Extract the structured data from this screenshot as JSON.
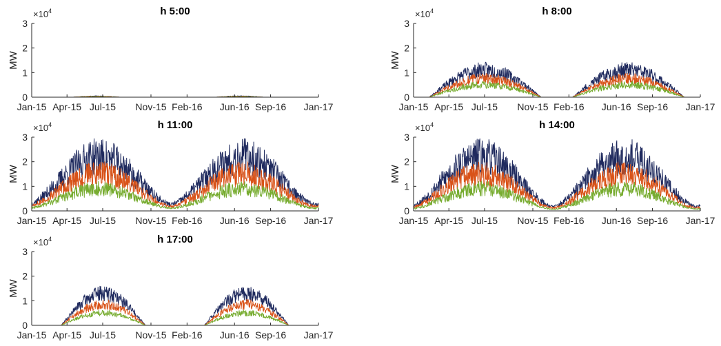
{
  "chart_data": [
    {
      "type": "line",
      "title": "h 5:00",
      "ylabel": "MW",
      "exponent_label": "×10",
      "exponent_power": "4",
      "ylim": [
        0,
        30000
      ],
      "yticks": [
        0,
        10000,
        20000,
        30000
      ],
      "ytick_labels": [
        "0",
        "1",
        "2",
        "3"
      ],
      "xlim": [
        "2015-01-01",
        "2017-01-01"
      ],
      "xticks": [
        "2015-01-01",
        "2015-04-01",
        "2015-07-01",
        "2015-11-01",
        "2016-02-01",
        "2016-06-01",
        "2016-09-01",
        "2017-01-01"
      ],
      "xtick_labels": [
        "Jan-15",
        "Apr-15",
        "Jul-15",
        "Nov-15",
        "Feb-16",
        "Jun-16",
        "Sep-16",
        "Jan-17"
      ],
      "series": [
        {
          "color": "#1f2a5e",
          "peak": 400,
          "noise": 0.45
        },
        {
          "color": "#d95319",
          "peak": 280,
          "noise": 0.45
        },
        {
          "color": "#77ac30",
          "peak": 180,
          "noise": 0.45
        }
      ],
      "profile": {
        "start_doy": 105,
        "end_doy": 225,
        "base": 0,
        "seed": 11
      }
    },
    {
      "type": "line",
      "title": "h 8:00",
      "ylabel": "MW",
      "exponent_label": "×10",
      "exponent_power": "4",
      "ylim": [
        0,
        30000
      ],
      "yticks": [
        0,
        10000,
        20000,
        30000
      ],
      "ytick_labels": [
        "0",
        "1",
        "2",
        "3"
      ],
      "xlim": [
        "2015-01-01",
        "2017-01-01"
      ],
      "xticks": [
        "2015-01-01",
        "2015-04-01",
        "2015-07-01",
        "2015-11-01",
        "2016-02-01",
        "2016-06-01",
        "2016-09-01",
        "2017-01-01"
      ],
      "xtick_labels": [
        "Jan-15",
        "Apr-15",
        "Jul-15",
        "Nov-15",
        "Feb-16",
        "Jun-16",
        "Sep-16",
        "Jan-17"
      ],
      "series": [
        {
          "color": "#1f2a5e",
          "peak": 11000,
          "noise": 0.3
        },
        {
          "color": "#d95319",
          "peak": 7500,
          "noise": 0.3
        },
        {
          "color": "#77ac30",
          "peak": 5000,
          "noise": 0.3
        }
      ],
      "profile": {
        "start_doy": 40,
        "end_doy": 325,
        "base": 0,
        "seed": 23
      }
    },
    {
      "type": "line",
      "title": "h 11:00",
      "ylabel": "MW",
      "exponent_label": "×10",
      "exponent_power": "4",
      "ylim": [
        0,
        30000
      ],
      "yticks": [
        0,
        10000,
        20000,
        30000
      ],
      "ytick_labels": [
        "0",
        "1",
        "2",
        "3"
      ],
      "xlim": [
        "2015-01-01",
        "2017-01-01"
      ],
      "xticks": [
        "2015-01-01",
        "2015-04-01",
        "2015-07-01",
        "2015-11-01",
        "2016-02-01",
        "2016-06-01",
        "2016-09-01",
        "2017-01-01"
      ],
      "xtick_labels": [
        "Jan-15",
        "Apr-15",
        "Jul-15",
        "Nov-15",
        "Feb-16",
        "Jun-16",
        "Sep-16",
        "Jan-17"
      ],
      "series": [
        {
          "color": "#1f2a5e",
          "peak": 22000,
          "noise": 0.35
        },
        {
          "color": "#d95319",
          "peak": 15000,
          "noise": 0.35
        },
        {
          "color": "#77ac30",
          "peak": 9000,
          "noise": 0.35
        }
      ],
      "profile": {
        "start_doy": 0,
        "end_doy": 366,
        "base": 0.12,
        "seed": 37
      }
    },
    {
      "type": "line",
      "title": "h 14:00",
      "ylabel": "MW",
      "exponent_label": "×10",
      "exponent_power": "4",
      "ylim": [
        0,
        30000
      ],
      "yticks": [
        0,
        10000,
        20000,
        30000
      ],
      "ytick_labels": [
        "0",
        "1",
        "2",
        "3"
      ],
      "xlim": [
        "2015-01-01",
        "2017-01-01"
      ],
      "xticks": [
        "2015-01-01",
        "2015-04-01",
        "2015-07-01",
        "2015-11-01",
        "2016-02-01",
        "2016-06-01",
        "2016-09-01",
        "2017-01-01"
      ],
      "xtick_labels": [
        "Jan-15",
        "Apr-15",
        "Jul-15",
        "Nov-15",
        "Feb-16",
        "Jun-16",
        "Sep-16",
        "Jan-17"
      ],
      "series": [
        {
          "color": "#1f2a5e",
          "peak": 22000,
          "noise": 0.35
        },
        {
          "color": "#d95319",
          "peak": 15000,
          "noise": 0.35
        },
        {
          "color": "#77ac30",
          "peak": 9000,
          "noise": 0.35
        }
      ],
      "profile": {
        "start_doy": 0,
        "end_doy": 366,
        "base": 0.08,
        "seed": 53
      }
    },
    {
      "type": "line",
      "title": "h 17:00",
      "ylabel": "MW",
      "exponent_label": "×10",
      "exponent_power": "4",
      "ylim": [
        0,
        30000
      ],
      "yticks": [
        0,
        10000,
        20000,
        30000
      ],
      "ytick_labels": [
        "0",
        "1",
        "2",
        "3"
      ],
      "xlim": [
        "2015-01-01",
        "2017-01-01"
      ],
      "xticks": [
        "2015-01-01",
        "2015-04-01",
        "2015-07-01",
        "2015-11-01",
        "2016-02-01",
        "2016-06-01",
        "2016-09-01",
        "2017-01-01"
      ],
      "xtick_labels": [
        "Jan-15",
        "Apr-15",
        "Jul-15",
        "Nov-15",
        "Feb-16",
        "Jun-16",
        "Sep-16",
        "Jan-17"
      ],
      "series": [
        {
          "color": "#1f2a5e",
          "peak": 13000,
          "noise": 0.25
        },
        {
          "color": "#d95319",
          "peak": 8500,
          "noise": 0.25
        },
        {
          "color": "#77ac30",
          "peak": 5000,
          "noise": 0.25
        }
      ],
      "profile": {
        "start_doy": 75,
        "end_doy": 290,
        "base": 0,
        "seed": 71
      }
    }
  ]
}
